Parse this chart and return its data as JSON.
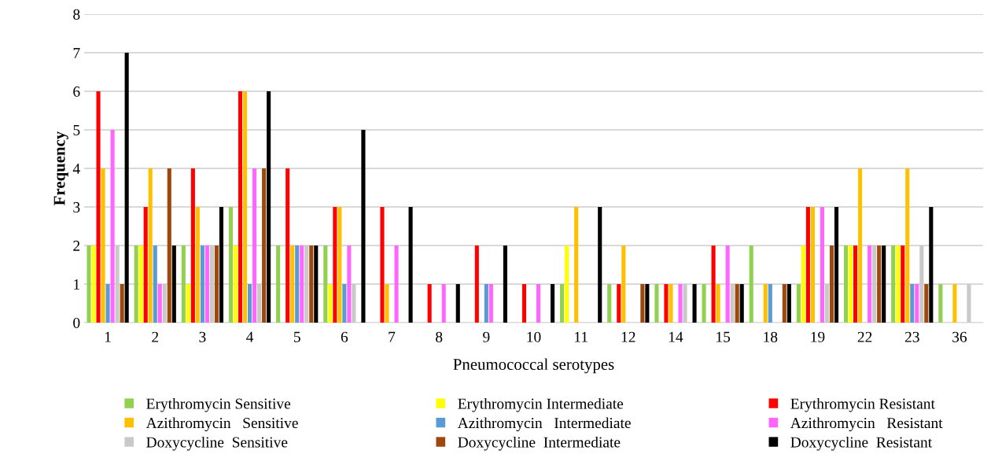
{
  "chart_data": {
    "type": "bar",
    "xlabel": "Pneumococcal serotypes",
    "ylabel": "Frequency",
    "categories": [
      "1",
      "2",
      "3",
      "4",
      "5",
      "6",
      "7",
      "8",
      "9",
      "10",
      "11",
      "12",
      "14",
      "15",
      "18",
      "19",
      "22",
      "23",
      "36"
    ],
    "ylim": [
      0,
      8
    ],
    "yticks": [
      0,
      1,
      2,
      3,
      4,
      5,
      6,
      7,
      8
    ],
    "grid": "y",
    "legend": "bottom",
    "series": [
      {
        "name": "Erythromycin Sensitive",
        "color": "#92d050",
        "values": [
          2,
          2,
          2,
          3,
          2,
          2,
          0,
          0,
          0,
          0,
          1,
          1,
          1,
          1,
          2,
          1,
          2,
          2,
          1
        ]
      },
      {
        "name": "Erythromycin Intermediate",
        "color": "#ffff00",
        "values": [
          2,
          2,
          1,
          2,
          0,
          1,
          0,
          0,
          0,
          0,
          2,
          0,
          0,
          0,
          0,
          2,
          2,
          2,
          0
        ]
      },
      {
        "name": "Erythromycin Resistant",
        "color": "#ff0000",
        "values": [
          6,
          3,
          4,
          6,
          4,
          3,
          3,
          1,
          2,
          1,
          0,
          1,
          1,
          2,
          0,
          3,
          2,
          2,
          0
        ]
      },
      {
        "name": "Azithromycin   Sensitive",
        "color": "#ffc000",
        "values": [
          4,
          4,
          3,
          6,
          2,
          3,
          1,
          0,
          0,
          0,
          3,
          2,
          1,
          1,
          1,
          3,
          4,
          4,
          1
        ]
      },
      {
        "name": "Azithromycin   Intermediate",
        "color": "#5b9bd5",
        "values": [
          1,
          2,
          2,
          1,
          2,
          1,
          0,
          0,
          1,
          0,
          0,
          0,
          0,
          0,
          1,
          0,
          0,
          1,
          0
        ]
      },
      {
        "name": "Azithromycin   Resistant",
        "color": "#ff66ff",
        "values": [
          5,
          1,
          2,
          4,
          2,
          2,
          2,
          1,
          1,
          1,
          0,
          0,
          1,
          2,
          0,
          3,
          2,
          1,
          0
        ]
      },
      {
        "name": "Doxycycline  Sensitive",
        "color": "#c9c9c9",
        "values": [
          2,
          1,
          2,
          1,
          2,
          1,
          0,
          0,
          0,
          0,
          0,
          0,
          1,
          1,
          0,
          1,
          2,
          2,
          1
        ]
      },
      {
        "name": "Doxycycline  Intermediate",
        "color": "#9e480e",
        "values": [
          1,
          4,
          2,
          4,
          2,
          0,
          0,
          0,
          0,
          0,
          0,
          1,
          0,
          1,
          1,
          2,
          2,
          1,
          0
        ]
      },
      {
        "name": "Doxycycline  Resistant",
        "color": "#000000",
        "values": [
          7,
          2,
          3,
          6,
          2,
          5,
          3,
          1,
          2,
          1,
          3,
          1,
          1,
          1,
          1,
          3,
          2,
          3,
          0
        ]
      }
    ]
  }
}
